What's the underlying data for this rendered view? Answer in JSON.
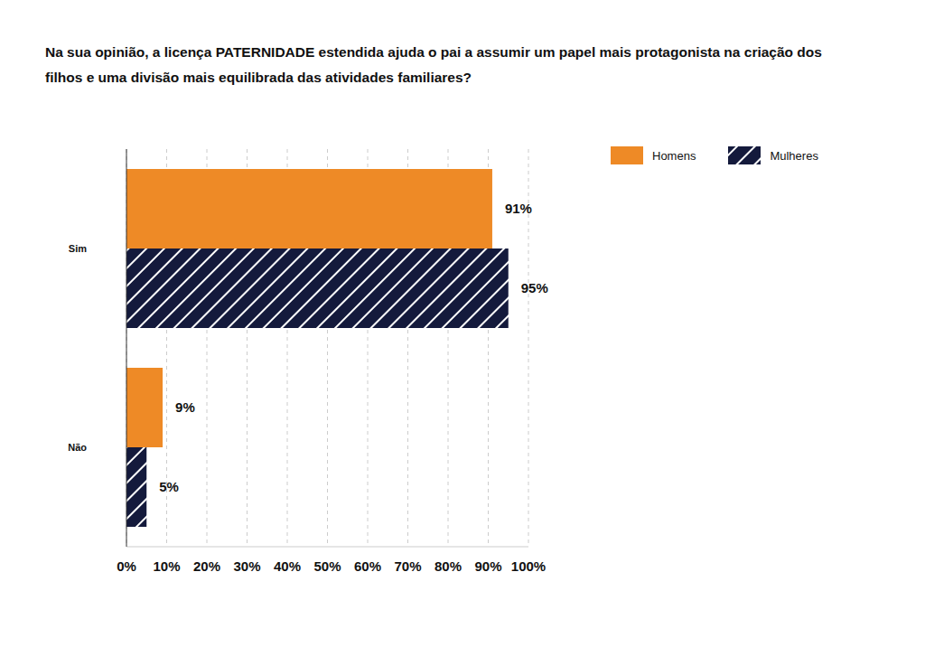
{
  "chart_data": {
    "type": "bar",
    "orientation": "horizontal",
    "title": "Na sua opinião, a licença PATERNIDADE estendida ajuda o pai a assumir um papel mais protagonista na criação dos filhos e uma divisão mais equilibrada das atividades familiares?",
    "categories": [
      "Sim",
      "Não"
    ],
    "series": [
      {
        "name": "Homens",
        "color": "#ee8a26",
        "values": [
          91,
          9
        ],
        "value_labels": [
          "91%",
          "9%"
        ]
      },
      {
        "name": "Mulheres",
        "color": "#141a3c",
        "values": [
          95,
          5
        ],
        "value_labels": [
          "95%",
          "5%"
        ]
      }
    ],
    "xlim": [
      0,
      100
    ],
    "xticks": [
      {
        "value": 0,
        "label": "0%"
      },
      {
        "value": 10,
        "label": "10%"
      },
      {
        "value": 20,
        "label": "20%"
      },
      {
        "value": 30,
        "label": "30%"
      },
      {
        "value": 40,
        "label": "40%"
      },
      {
        "value": 50,
        "label": "50%"
      },
      {
        "value": 60,
        "label": "60%"
      },
      {
        "value": 70,
        "label": "70%"
      },
      {
        "value": 80,
        "label": "80%"
      },
      {
        "value": 90,
        "label": "90%"
      },
      {
        "value": 100,
        "label": "100%"
      }
    ],
    "grid": true,
    "data_labels": true,
    "legend": "upper right"
  }
}
